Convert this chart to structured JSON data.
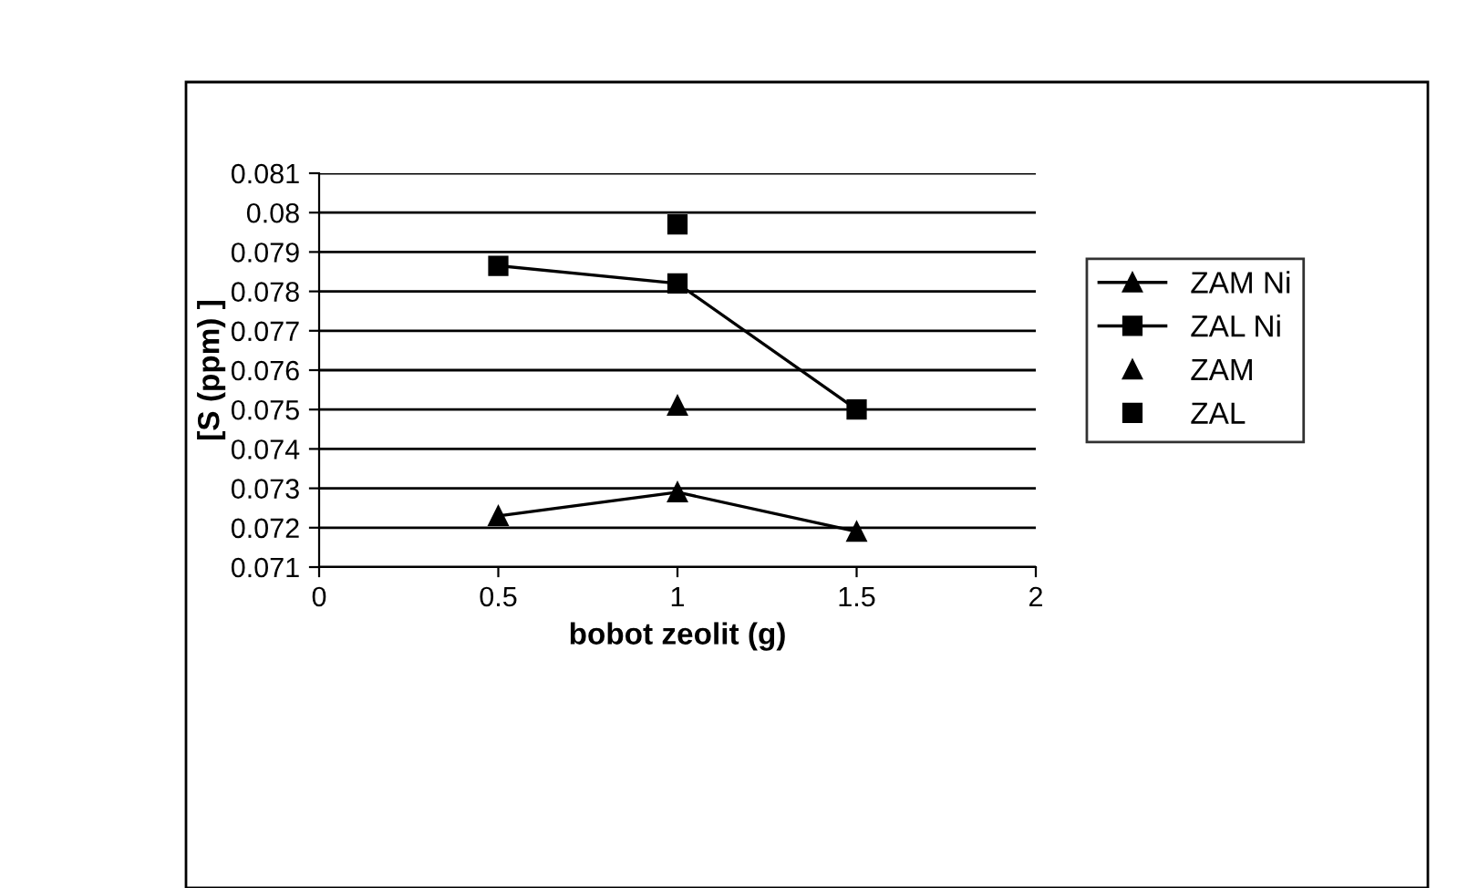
{
  "chart_data": {
    "type": "line",
    "xlabel": "bobot zeolit (g)",
    "ylabel": "[S (ppm) ]",
    "xlim": [
      0,
      2
    ],
    "xticks": [
      0,
      0.5,
      1,
      1.5,
      2
    ],
    "ylim": [
      0.071,
      0.081
    ],
    "yticks": [
      0.071,
      0.072,
      0.073,
      0.074,
      0.075,
      0.076,
      0.077,
      0.078,
      0.079,
      0.08,
      0.081
    ],
    "grid": "y",
    "legend": "right",
    "series": [
      {
        "name": "ZAM Ni",
        "marker": "triangle",
        "color": "#000000",
        "x": [
          0.5,
          1,
          1.5
        ],
        "values": [
          0.0723,
          0.0729,
          0.0719
        ]
      },
      {
        "name": "ZAL Ni",
        "marker": "square",
        "color": "#000000",
        "x": [
          0.5,
          1,
          1.5
        ],
        "values": [
          0.07865,
          0.0782,
          0.075
        ]
      },
      {
        "name": "ZAM",
        "type": "scatter",
        "marker": "triangle",
        "color": "#000000",
        "x": [
          1
        ],
        "values": [
          0.0751
        ]
      },
      {
        "name": "ZAL",
        "type": "scatter",
        "marker": "square",
        "color": "#000000",
        "x": [
          1
        ],
        "values": [
          0.0797
        ]
      }
    ]
  }
}
